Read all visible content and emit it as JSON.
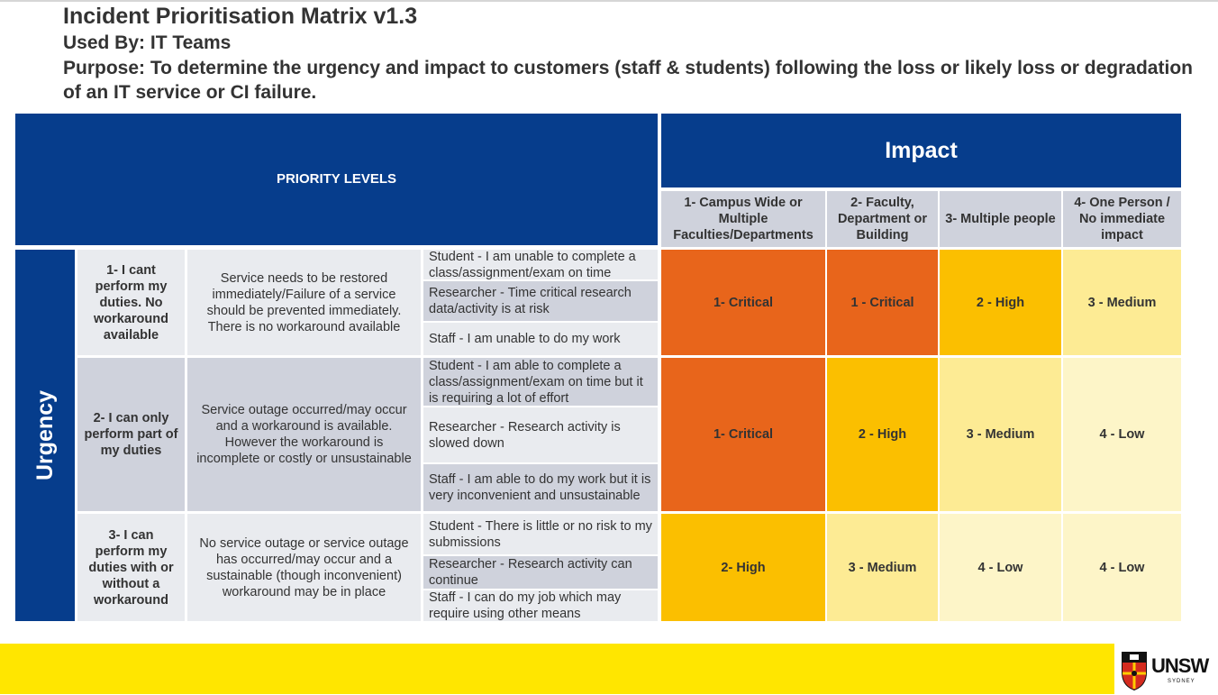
{
  "header": {
    "title": "Incident Prioritisation Matrix v1.3",
    "used_by": "Used By: IT Teams",
    "purpose": "Purpose: To determine the urgency and impact to customers (staff & students) following the loss or likely loss or degradation of an IT service or CI failure."
  },
  "matrix": {
    "priority_levels_label": "PRIORITY LEVELS",
    "impact_label": "Impact",
    "urgency_label": "Urgency",
    "impact_columns": [
      "1- Campus Wide or Multiple Faculties/Departments",
      "2- Faculty, Department or Building",
      "3- Multiple people",
      "4- One Person / No immediate impact"
    ],
    "rows": [
      {
        "urgency": "1- I cant perform my duties. No workaround available",
        "description": "Service needs to be restored immediately/Failure of a service should be prevented immediately. There is no workaround available",
        "examples": [
          "Student - I am unable to complete a class/assignment/exam on time",
          "Researcher - Time critical research data/activity is at risk",
          "Staff - I am unable to do my work"
        ],
        "priorities": [
          "1- Critical",
          "1 - Critical",
          "2 - High",
          "3 - Medium"
        ]
      },
      {
        "urgency": "2- I can only perform part of my duties",
        "description": "Service outage occurred/may occur and a workaround is available. However the workaround is incomplete or costly or unsustainable",
        "examples": [
          "Student - I am able to complete a class/assignment/exam on time but it is requiring a lot of effort",
          "Researcher - Research activity is slowed down",
          "Staff - I am able to do my work but it is very inconvenient and unsustainable"
        ],
        "priorities": [
          "1- Critical",
          "2 - High",
          "3 - Medium",
          "4 - Low"
        ]
      },
      {
        "urgency": "3- I can perform my duties with or without a workaround",
        "description": "No service outage or service outage has occurred/may occur and a sustainable (though inconvenient) workaround may be in place",
        "examples": [
          "Student - There is little or no risk to my submissions",
          "Researcher - Research activity can continue",
          "Staff - I can do my job which may require using other means"
        ],
        "priorities": [
          "2- High",
          "3 - Medium",
          "4 - Low",
          "4 - Low"
        ]
      }
    ]
  },
  "colors": {
    "header_blue": "#063d8c",
    "critical": "#e8651b",
    "high": "#fbbf00",
    "medium": "#fdeb94",
    "low": "#fdf5c8",
    "footer_yellow": "#ffe600"
  },
  "footer": {
    "logo_text": "UNSW",
    "logo_subtext": "SYDNEY",
    "logo_icon": "unsw-crest-icon"
  }
}
